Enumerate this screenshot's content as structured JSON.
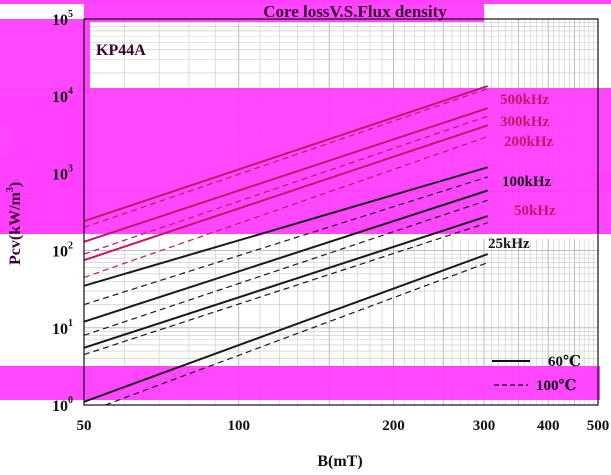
{
  "chart_data": {
    "type": "line",
    "title": "Core lossV.S.Flux density",
    "material": "KP44A",
    "xlabel": "B(mT)",
    "ylabel": "Pcv(kW/m",
    "ylabel_sup": "3",
    "ylabel_close": ")",
    "x_scale": "log",
    "y_scale": "log",
    "xlim": [
      50,
      500
    ],
    "ylim": [
      1,
      100000
    ],
    "grid": true,
    "x_ticks": [
      {
        "value": 50,
        "label": "50"
      },
      {
        "value": 100,
        "label": "100"
      },
      {
        "value": 200,
        "label": "200"
      },
      {
        "value": 300,
        "label": "300"
      },
      {
        "value": 400,
        "label": "400"
      },
      {
        "value": 500,
        "label": "500"
      }
    ],
    "y_ticks": [
      {
        "value": 1,
        "base": "10",
        "exp": "0"
      },
      {
        "value": 10,
        "base": "10",
        "exp": "1"
      },
      {
        "value": 100,
        "base": "10",
        "exp": "2"
      },
      {
        "value": 1000,
        "base": "10",
        "exp": "3"
      },
      {
        "value": 10000,
        "base": "10",
        "exp": "4"
      },
      {
        "value": 100000,
        "base": "10",
        "exp": "5"
      }
    ],
    "legend": {
      "placement": "bottom-right",
      "entries": [
        {
          "label": "60℃",
          "style": "solid"
        },
        {
          "label": "100℃",
          "style": "dashed"
        }
      ]
    },
    "series": [
      {
        "frequency": "500kHz",
        "temperature": "60℃",
        "style": "solid",
        "color": "#c0186a",
        "x": [
          50,
          305
        ],
        "y": [
          240,
          13500
        ]
      },
      {
        "frequency": "500kHz",
        "temperature": "100℃",
        "style": "dashed",
        "color": "#c0186a",
        "x": [
          50,
          305
        ],
        "y": [
          200,
          12500
        ]
      },
      {
        "frequency": "300kHz",
        "temperature": "60℃",
        "style": "solid",
        "color": "#c0186a",
        "x": [
          50,
          305
        ],
        "y": [
          130,
          7000
        ]
      },
      {
        "frequency": "300kHz",
        "temperature": "100℃",
        "style": "dashed",
        "color": "#c0186a",
        "x": [
          50,
          305
        ],
        "y": [
          90,
          5500
        ]
      },
      {
        "frequency": "200kHz",
        "temperature": "60℃",
        "style": "solid",
        "color": "#c0186a",
        "x": [
          50,
          305
        ],
        "y": [
          75,
          4200
        ]
      },
      {
        "frequency": "200kHz",
        "temperature": "100℃",
        "style": "dashed",
        "color": "#c0186a",
        "x": [
          50,
          305
        ],
        "y": [
          45,
          3000
        ]
      },
      {
        "frequency": "100kHz",
        "temperature": "60℃",
        "style": "solid",
        "color": "#1a1a1a",
        "x": [
          50,
          305
        ],
        "y": [
          35,
          1200
        ]
      },
      {
        "frequency": "100kHz",
        "temperature": "100℃",
        "style": "dashed",
        "color": "#1a1a1a",
        "x": [
          50,
          305
        ],
        "y": [
          20,
          900
        ]
      },
      {
        "frequency": "50kHz",
        "temperature": "60℃",
        "style": "solid",
        "color": "#1a1a1a",
        "x": [
          50,
          305
        ],
        "y": [
          12,
          600
        ]
      },
      {
        "frequency": "50kHz",
        "temperature": "100℃",
        "style": "dashed",
        "color": "#1a1a1a",
        "x": [
          50,
          305
        ],
        "y": [
          8,
          450
        ]
      },
      {
        "frequency": "25kHz",
        "temperature": "60℃",
        "style": "solid",
        "color": "#1a1a1a",
        "x": [
          50,
          305
        ],
        "y": [
          5.5,
          280
        ]
      },
      {
        "frequency": "25kHz",
        "temperature": "100℃",
        "style": "dashed",
        "color": "#1a1a1a",
        "x": [
          50,
          305
        ],
        "y": [
          4.5,
          230
        ]
      },
      {
        "frequency": "25kHz",
        "temperature": "60℃",
        "style": "solid",
        "color": "#1a1a1a",
        "x": [
          50,
          305
        ],
        "y": [
          1.1,
          90
        ]
      },
      {
        "frequency": "25kHz",
        "temperature": "100℃",
        "style": "dashed",
        "color": "#1a1a1a",
        "x": [
          55,
          305
        ],
        "y": [
          1.0,
          70
        ]
      }
    ],
    "curve_labels": [
      {
        "text": "500kHz",
        "color": "#c0186a"
      },
      {
        "text": "300kHz",
        "color": "#c0186a"
      },
      {
        "text": "200kHz",
        "color": "#c0186a"
      },
      {
        "text": "100kHz",
        "color": "#1a1a1a"
      },
      {
        "text": "50kHz",
        "color": "#c0186a"
      },
      {
        "text": "25kHz",
        "color": "#1a1a1a"
      }
    ],
    "colors": {
      "highlight": "#ff40ff",
      "accent": "#c0186a",
      "ink": "#1a1a1a"
    }
  }
}
